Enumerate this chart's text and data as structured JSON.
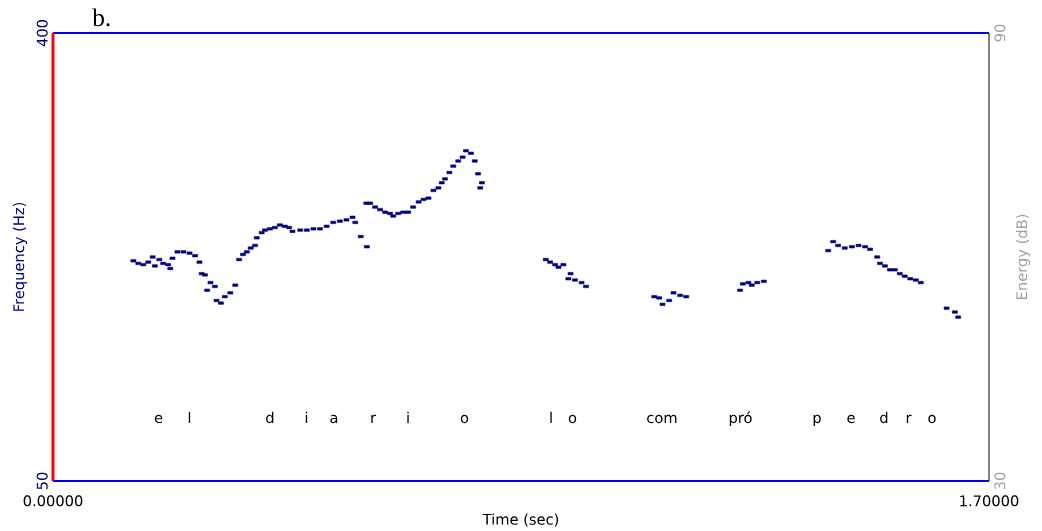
{
  "chart_data": {
    "type": "scatter",
    "title": "b.",
    "xlabel": "Time (sec)",
    "ylabel": "Frequency (Hz)",
    "y2label": "Energy (dB)",
    "xlim": [
      0,
      1.7
    ],
    "xticks": [
      {
        "value": 0,
        "label": "0.00000"
      },
      {
        "value": 1.7,
        "label": "1.70000"
      }
    ],
    "ylim": [
      50,
      400
    ],
    "yticks": [
      50,
      400
    ],
    "y2lim": [
      30,
      90
    ],
    "y2ticks": [
      30,
      90
    ],
    "marker": "square",
    "series": [
      {
        "color": "#000080",
        "x": [
          0.146,
          0.155,
          0.164,
          0.173,
          0.181,
          0.185,
          0.193,
          0.2,
          0.209,
          0.213,
          0.217,
          0.226,
          0.237,
          0.248,
          0.258,
          0.266,
          0.27,
          0.276,
          0.28,
          0.286,
          0.294,
          0.297,
          0.305,
          0.312,
          0.322,
          0.331,
          0.338,
          0.345,
          0.352,
          0.359,
          0.367,
          0.37,
          0.379,
          0.385,
          0.394,
          0.403,
          0.412,
          0.421,
          0.429,
          0.435,
          0.449,
          0.461,
          0.473,
          0.485,
          0.497,
          0.509,
          0.521,
          0.533,
          0.544,
          0.549,
          0.559,
          0.57,
          0.569,
          0.576,
          0.585,
          0.594,
          0.603,
          0.612,
          0.618,
          0.627,
          0.636,
          0.645,
          0.654,
          0.664,
          0.673,
          0.682,
          0.691,
          0.7,
          0.706,
          0.712,
          0.72,
          0.727,
          0.736,
          0.744,
          0.75,
          0.759,
          0.766,
          0.772,
          0.776,
          0.779,
          0.895,
          0.903,
          0.912,
          0.918,
          0.927,
          0.936,
          0.94,
          0.948,
          0.96,
          0.968,
          1.092,
          1.101,
          1.107,
          1.119,
          1.127,
          1.139,
          1.15,
          1.248,
          1.253,
          1.263,
          1.269,
          1.279,
          1.291,
          1.408,
          1.417,
          1.426,
          1.438,
          1.451,
          1.463,
          1.475,
          1.484,
          1.497,
          1.502,
          1.511,
          1.52,
          1.529,
          1.538,
          1.547,
          1.557,
          1.567,
          1.576,
          1.623,
          1.638,
          1.644
        ],
        "values": [
          222,
          220,
          219,
          221,
          225,
          218,
          223,
          220,
          219,
          216,
          224,
          229,
          229,
          228,
          226,
          221,
          212,
          211,
          199,
          205,
          202,
          191,
          189,
          194,
          197,
          203,
          223,
          227,
          229,
          232,
          234,
          240,
          244,
          246,
          247,
          248,
          250,
          249,
          248,
          245,
          246,
          246,
          247,
          247,
          249,
          252,
          253,
          254,
          256,
          252,
          241,
          233,
          267,
          267,
          264,
          262,
          260,
          259,
          257,
          259,
          260,
          260,
          264,
          268,
          270,
          271,
          277,
          279,
          283,
          286,
          291,
          296,
          300,
          303,
          308,
          306,
          300,
          290,
          279,
          283,
          223,
          221,
          219,
          217,
          219,
          208,
          212,
          207,
          205,
          202,
          194,
          193,
          188,
          191,
          197,
          195,
          194,
          199,
          204,
          205,
          203,
          205,
          206,
          230,
          237,
          234,
          232,
          233,
          234,
          233,
          231,
          225,
          220,
          218,
          215,
          215,
          212,
          210,
          208,
          207,
          205,
          185,
          182,
          178
        ]
      }
    ],
    "annotations": [
      "e",
      "l",
      "d",
      "i",
      "a",
      "r",
      "i",
      "o",
      "l",
      "o",
      "com",
      "pró",
      "p",
      "e",
      "d",
      "r",
      "o"
    ]
  }
}
